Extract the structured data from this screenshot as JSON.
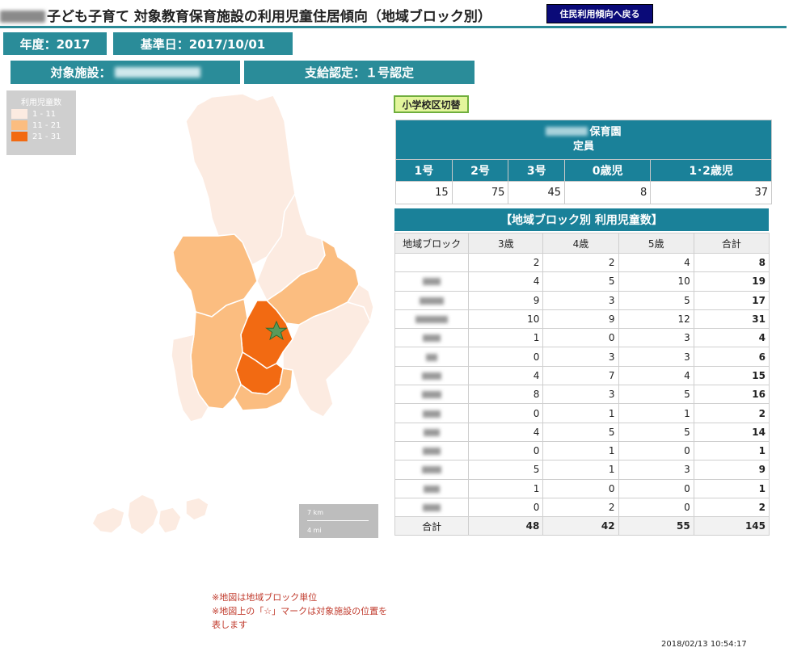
{
  "header": {
    "title": "子ども子育て 対象教育保育施設の利用児童住居傾向（地域ブロック別）",
    "back_button": "住民利用傾向へ戻る"
  },
  "info": {
    "year_label": "年度：2017",
    "base_date_label": "基準日：2017/10/01",
    "facility_label": "対象施設：",
    "certification_label": "支給認定：１号認定"
  },
  "legend": {
    "title": "利用児童数",
    "items": [
      {
        "label": "1 - 11",
        "color": "#fcebe1"
      },
      {
        "label": "11 - 21",
        "color": "#fbbd80"
      },
      {
        "label": "21 - 31",
        "color": "#f26a12"
      }
    ]
  },
  "switch_button": "小学校区切替",
  "capacity": {
    "title": "保育園",
    "subtitle": "定員",
    "columns": [
      "1号",
      "2号",
      "3号",
      "0歳児",
      "1･2歳児"
    ],
    "values": [
      "15",
      "75",
      "45",
      "8",
      "37"
    ]
  },
  "block_table": {
    "title": "【地域ブロック別 利用児童数】",
    "columns": [
      "地域ブロック",
      "3歳",
      "4歳",
      "5歳",
      "合計"
    ],
    "rows": [
      {
        "v3": "2",
        "v4": "2",
        "v5": "4",
        "total": "8"
      },
      {
        "v3": "4",
        "v4": "5",
        "v5": "10",
        "total": "19"
      },
      {
        "v3": "9",
        "v4": "3",
        "v5": "5",
        "total": "17"
      },
      {
        "v3": "10",
        "v4": "9",
        "v5": "12",
        "total": "31"
      },
      {
        "v3": "1",
        "v4": "0",
        "v5": "3",
        "total": "4"
      },
      {
        "v3": "0",
        "v4": "3",
        "v5": "3",
        "total": "6"
      },
      {
        "v3": "4",
        "v4": "7",
        "v5": "4",
        "total": "15"
      },
      {
        "v3": "8",
        "v4": "3",
        "v5": "5",
        "total": "16"
      },
      {
        "v3": "0",
        "v4": "1",
        "v5": "1",
        "total": "2"
      },
      {
        "v3": "4",
        "v4": "5",
        "v5": "5",
        "total": "14"
      },
      {
        "v3": "0",
        "v4": "1",
        "v5": "0",
        "total": "1"
      },
      {
        "v3": "5",
        "v4": "1",
        "v5": "3",
        "total": "9"
      },
      {
        "v3": "1",
        "v4": "0",
        "v5": "0",
        "total": "1"
      },
      {
        "v3": "0",
        "v4": "2",
        "v5": "0",
        "total": "2"
      }
    ],
    "sum": {
      "label": "合計",
      "v3": "48",
      "v4": "42",
      "v5": "55",
      "total": "145"
    }
  },
  "scale": {
    "km": "7 km",
    "mi": "4 mi"
  },
  "notes": [
    "※地図は地域ブロック単位",
    "※地図上の「☆」マークは対象施設の位置を",
    "表します"
  ],
  "timestamp": "2018/02/13 10:54:17"
}
